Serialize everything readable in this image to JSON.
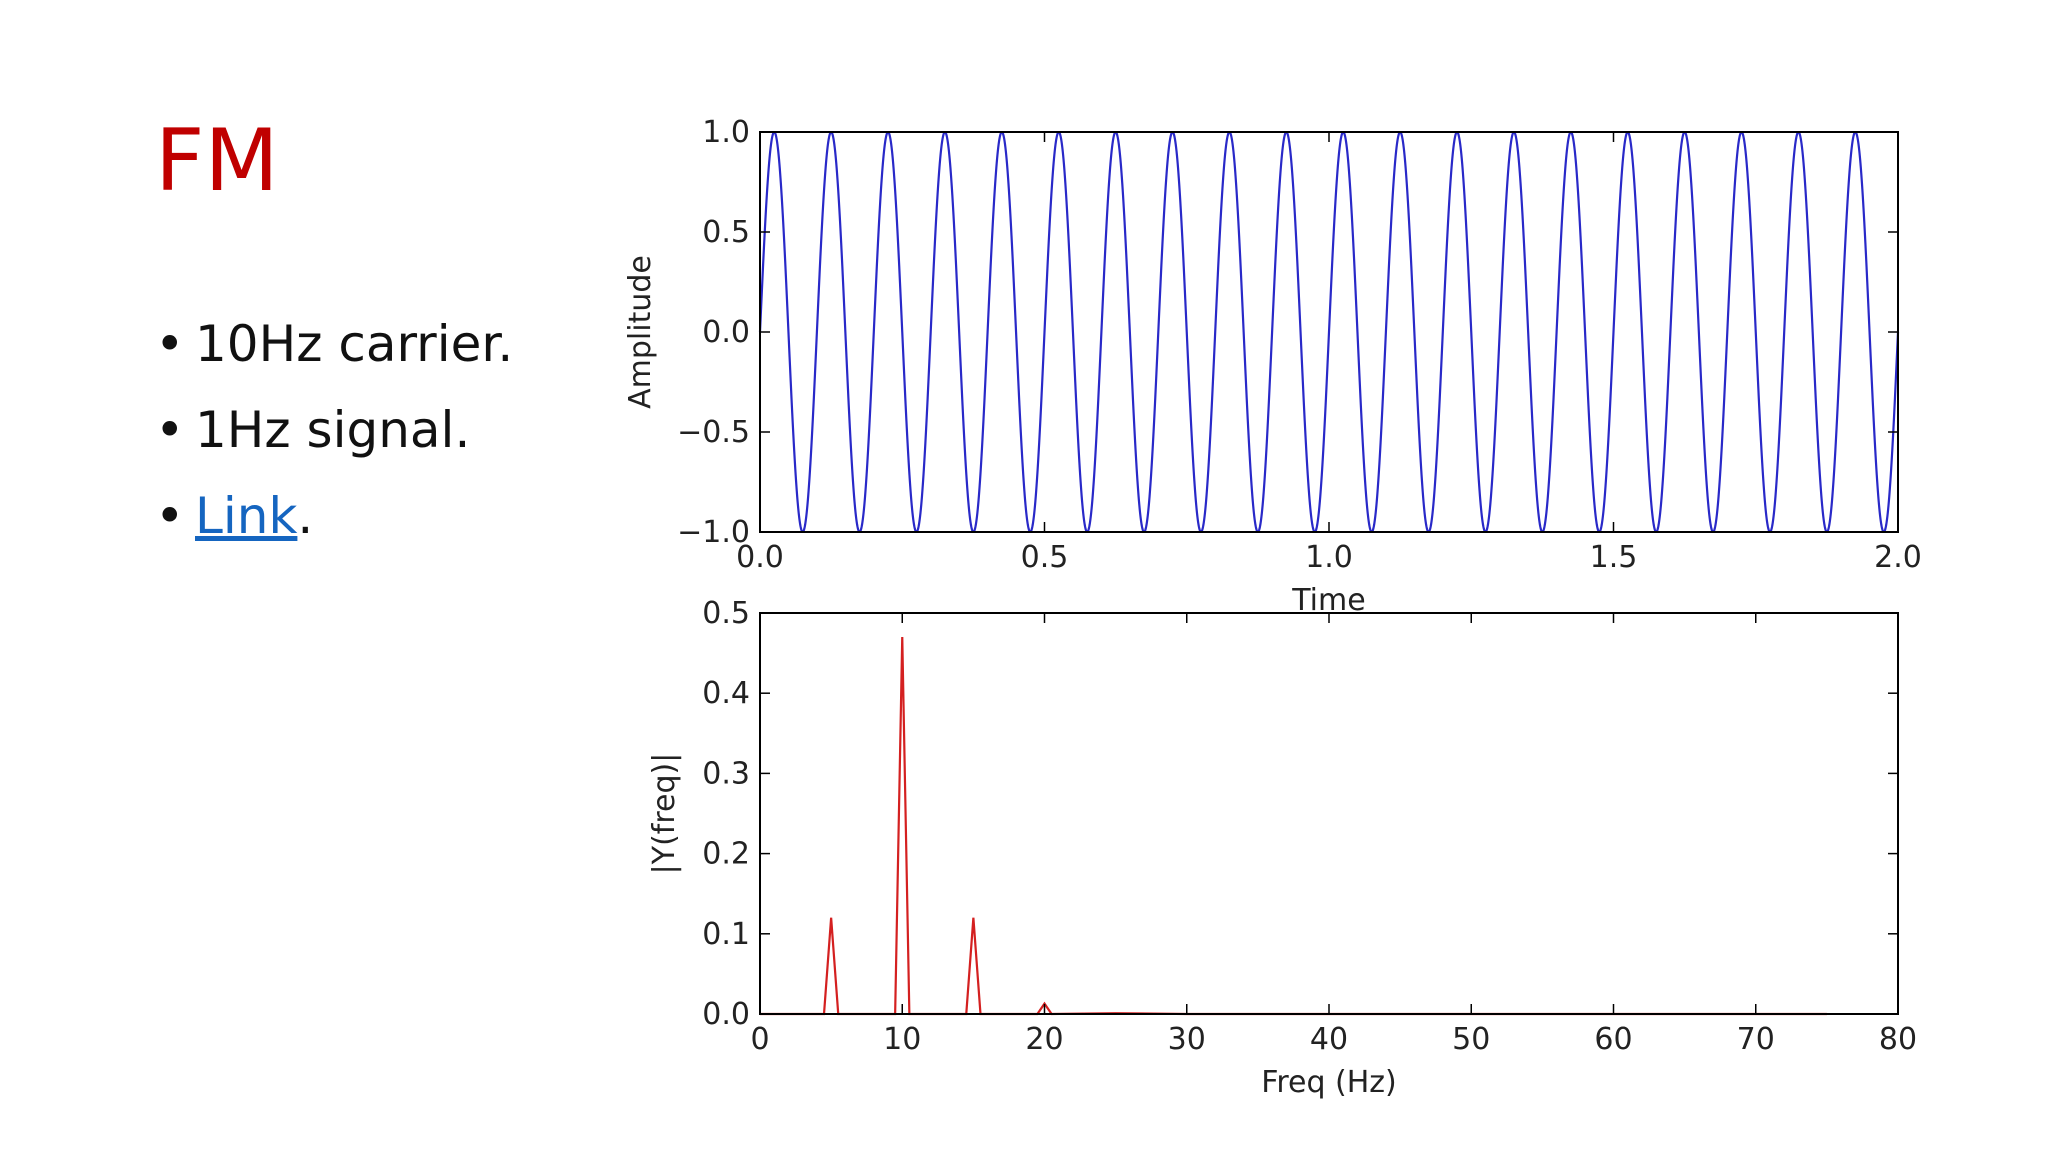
{
  "slide": {
    "title": "FM",
    "bullets": [
      {
        "text": "10Hz carrier."
      },
      {
        "text": "1Hz signal."
      },
      {
        "link_text": "Link",
        "suffix": "."
      }
    ]
  },
  "colors": {
    "title": "#c00000",
    "link": "#1565c0",
    "time_series": "#2929c8",
    "spectrum_series": "#d42020"
  },
  "chart_data": [
    {
      "type": "line",
      "name": "time-domain",
      "title": "",
      "xlabel": "Time",
      "ylabel": "Amplitude",
      "xlim": [
        0.0,
        2.0
      ],
      "ylim": [
        -1.0,
        1.0
      ],
      "xticks": [
        "0.0",
        "0.5",
        "1.0",
        "1.5",
        "2.0"
      ],
      "yticks": [
        "−1.0",
        "−0.5",
        "0.0",
        "0.5",
        "1.0"
      ],
      "xtick_values": [
        0.0,
        0.5,
        1.0,
        1.5,
        2.0
      ],
      "ytick_values": [
        -1.0,
        -0.5,
        0.0,
        0.5,
        1.0
      ],
      "grid": false,
      "legend": "none",
      "signal": {
        "carrier_hz": 10,
        "signal_hz": 1,
        "peak_times": [
          0.023,
          0.132,
          0.22,
          0.331,
          0.42,
          0.532,
          0.62,
          0.731,
          0.82,
          0.932,
          1.02,
          1.132,
          1.22,
          1.331,
          1.42,
          1.532,
          1.62,
          1.731,
          1.82,
          1.932
        ]
      }
    },
    {
      "type": "line",
      "name": "spectrum",
      "title": "",
      "xlabel": "Freq (Hz)",
      "ylabel": "|Y(freq)|",
      "xlim": [
        0,
        80
      ],
      "ylim": [
        0.0,
        0.5
      ],
      "xticks": [
        "0",
        "10",
        "20",
        "30",
        "40",
        "50",
        "60",
        "70",
        "80"
      ],
      "yticks": [
        "0.0",
        "0.1",
        "0.2",
        "0.3",
        "0.4",
        "0.5"
      ],
      "xtick_values": [
        0,
        10,
        20,
        30,
        40,
        50,
        60,
        70,
        80
      ],
      "ytick_values": [
        0.0,
        0.1,
        0.2,
        0.3,
        0.4,
        0.5
      ],
      "grid": false,
      "legend": "none",
      "x": [
        0,
        4.5,
        5,
        5.5,
        9.5,
        10,
        10.5,
        14.5,
        15,
        15.5,
        19.5,
        20,
        20.5,
        25,
        30,
        40,
        50,
        60,
        70,
        75
      ],
      "y": [
        0,
        0,
        0.12,
        0,
        0,
        0.47,
        0,
        0,
        0.12,
        0,
        0,
        0.013,
        0,
        0.001,
        0,
        0,
        0,
        0,
        0,
        0
      ]
    }
  ]
}
